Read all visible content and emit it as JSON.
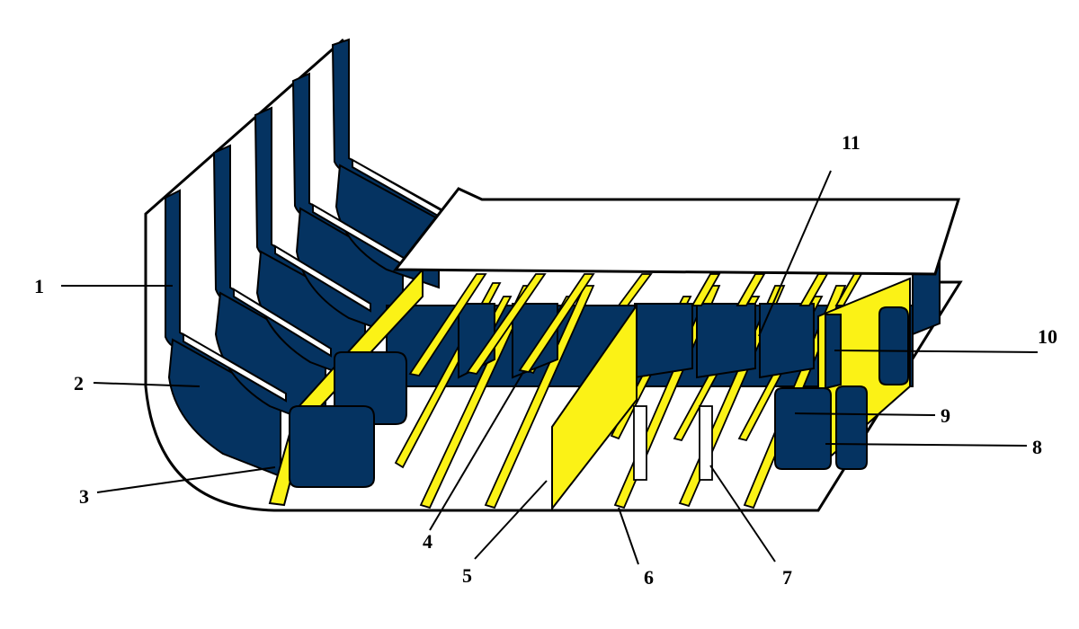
{
  "colors": {
    "navy": "#053361",
    "yellow": "#fbf216",
    "outline": "#000000",
    "deck": "#ffffff"
  },
  "callouts": [
    {
      "id": "1",
      "label": "1"
    },
    {
      "id": "2",
      "label": "2"
    },
    {
      "id": "3",
      "label": "3"
    },
    {
      "id": "4",
      "label": "4"
    },
    {
      "id": "5",
      "label": "5"
    },
    {
      "id": "6",
      "label": "6"
    },
    {
      "id": "7",
      "label": "7"
    },
    {
      "id": "8",
      "label": "8"
    },
    {
      "id": "9",
      "label": "9"
    },
    {
      "id": "10",
      "label": "10"
    },
    {
      "id": "11",
      "label": "11"
    }
  ]
}
